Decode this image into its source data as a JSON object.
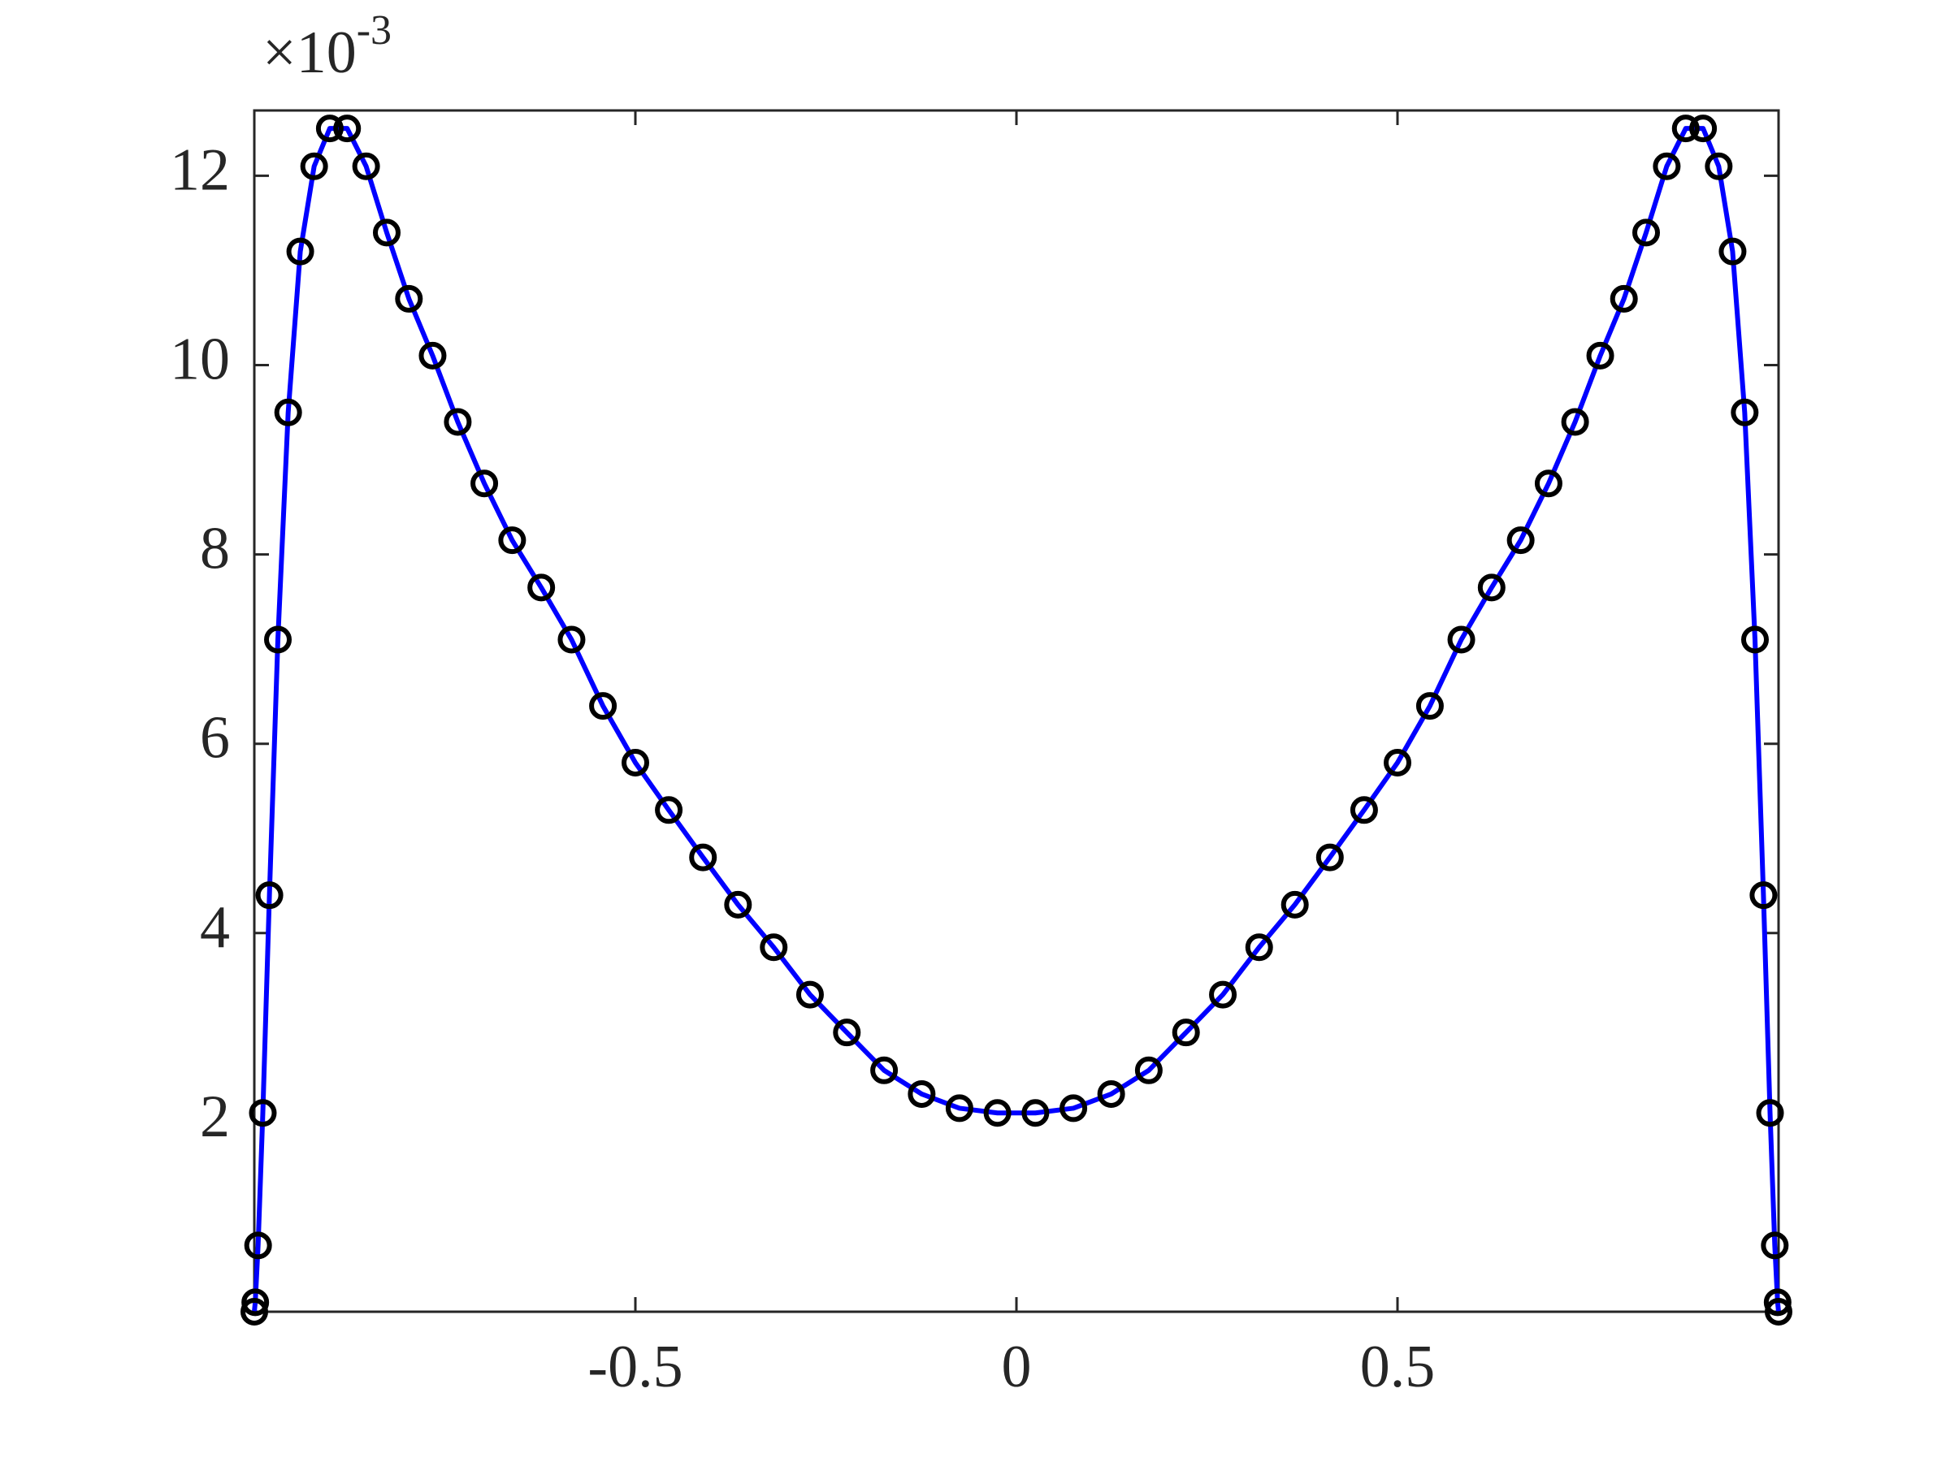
{
  "chart_data": {
    "type": "line",
    "xlim": [
      -1,
      1
    ],
    "ylim": [
      0,
      12.69
    ],
    "xticks": [
      -0.5,
      0,
      0.5
    ],
    "yticks": [
      2,
      4,
      6,
      8,
      10,
      12
    ],
    "y_scale_base": "×10",
    "y_scale_exponent": "-3",
    "box": true,
    "x": [
      -1,
      -0.99876,
      -0.99503,
      -0.98883,
      -0.98017,
      -0.96908,
      -0.95557,
      -0.93969,
      -0.92148,
      -0.90097,
      -0.87822,
      -0.85329,
      -0.82624,
      -0.79713,
      -0.76604,
      -0.73305,
      -0.69823,
      -0.66166,
      -0.62349,
      -0.58374,
      -0.54256,
      -0.5,
      -0.45621,
      -0.41129,
      -0.36534,
      -0.31849,
      -0.27084,
      -0.22252,
      -0.17365,
      -0.12434,
      -0.07473,
      -0.02493,
      0.02493,
      0.07473,
      0.12434,
      0.17365,
      0.22252,
      0.27084,
      0.31849,
      0.36534,
      0.41129,
      0.45621,
      0.5,
      0.54256,
      0.58374,
      0.62349,
      0.66166,
      0.69823,
      0.73305,
      0.76604,
      0.79713,
      0.82624,
      0.85329,
      0.87822,
      0.90097,
      0.92148,
      0.93969,
      0.95557,
      0.96908,
      0.98017,
      0.98883,
      0.99503,
      0.99876,
      1
    ],
    "series": [
      {
        "color": "#0000ff",
        "marker": "circle",
        "marker_color": "#000000",
        "values": [
          0,
          0.1,
          0.7,
          2.1,
          4.4,
          7.1,
          9.5,
          11.2,
          12.1,
          12.5,
          12.5,
          12.1,
          11.4,
          10.7,
          10.1,
          9.4,
          8.75,
          8.15,
          7.65,
          7.1,
          6.4,
          5.8,
          5.3,
          4.8,
          4.3,
          3.85,
          3.35,
          2.95,
          2.55,
          2.3,
          2.15,
          2.1,
          2.1,
          2.15,
          2.3,
          2.55,
          2.95,
          3.35,
          3.85,
          4.3,
          4.8,
          5.3,
          5.8,
          6.4,
          7.1,
          7.65,
          8.15,
          8.75,
          9.4,
          10.1,
          10.7,
          11.4,
          12.1,
          12.5,
          12.5,
          12.1,
          11.2,
          9.5,
          7.1,
          4.4,
          2.1,
          0.7,
          0.1,
          0
        ]
      }
    ]
  }
}
